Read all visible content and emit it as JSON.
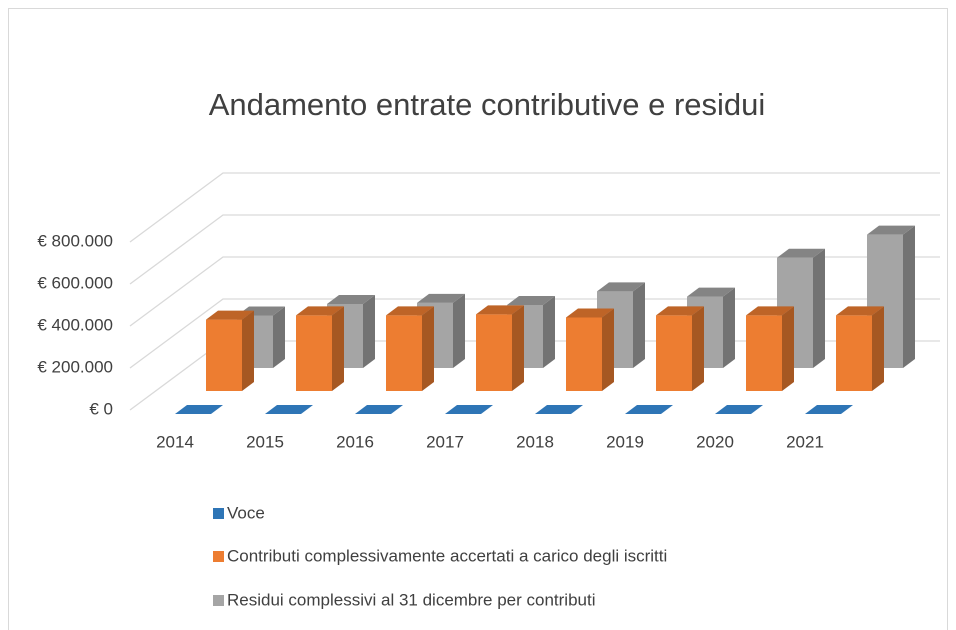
{
  "chart_data": {
    "type": "bar3d",
    "title": "Andamento entrate contributive e residui",
    "categories": [
      "2014",
      "2015",
      "2016",
      "2017",
      "2018",
      "2019",
      "2020",
      "2021"
    ],
    "series": [
      {
        "name": "Voce",
        "color": "#2e75b6",
        "values": [
          0,
          0,
          0,
          0,
          0,
          0,
          0,
          0
        ]
      },
      {
        "name": "Contributi complessivamente accertati a carico degli iscritti",
        "color": "#ed7d31",
        "values": [
          340000,
          360000,
          360000,
          365000,
          350000,
          360000,
          360000,
          360000
        ]
      },
      {
        "name": "Residui complessivi al 31 dicembre per contributi",
        "color": "#a5a5a5",
        "values": [
          250000,
          305000,
          310000,
          300000,
          365000,
          340000,
          525000,
          635000
        ]
      }
    ],
    "ylim": [
      0,
      800000
    ],
    "yticks": [
      {
        "value": 0,
        "label": "€ 0"
      },
      {
        "value": 200000,
        "label": "€ 200.000"
      },
      {
        "value": 400000,
        "label": "€ 400.000"
      },
      {
        "value": 600000,
        "label": "€ 600.000"
      },
      {
        "value": 800000,
        "label": "€ 800.000"
      }
    ],
    "grid": true,
    "legend": "bottom"
  }
}
